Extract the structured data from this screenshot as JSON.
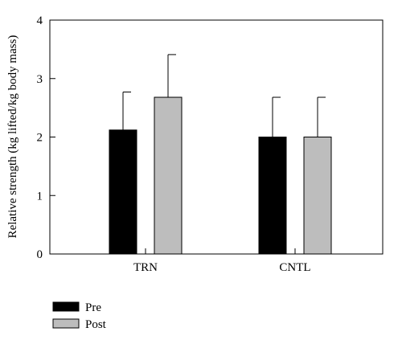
{
  "chart_data": {
    "type": "bar",
    "categories": [
      "TRN",
      "CNTL"
    ],
    "series": [
      {
        "name": "Pre",
        "color": "#000000",
        "values": [
          2.12,
          2.0
        ],
        "errors": [
          0.65,
          0.68
        ]
      },
      {
        "name": "Post",
        "color": "#bdbdbd",
        "values": [
          2.68,
          2.0
        ],
        "errors": [
          0.73,
          0.68
        ]
      }
    ],
    "xlabel": "",
    "ylabel": "Relative strength (kg lifted/kg body mass)",
    "ylim": [
      0,
      4
    ],
    "yticks": [
      "0",
      "1",
      "2",
      "3",
      "4"
    ],
    "grid": false,
    "legend_position": "bottom-left"
  }
}
